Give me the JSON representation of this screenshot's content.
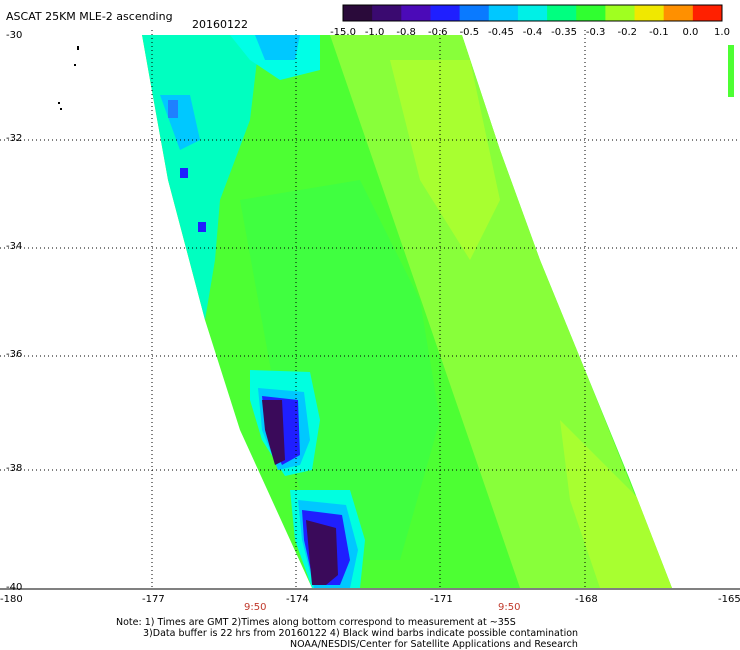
{
  "header": {
    "title": "ASCAT 25KM MLE-2 ascending",
    "date": "20160122"
  },
  "colorbar": {
    "labels": [
      "-15.0",
      "-1.0",
      "-0.8",
      "-0.6",
      "-0.5",
      "-0.45",
      "-0.4",
      "-0.35",
      "-0.3",
      "-0.2",
      "-0.1",
      "0.0",
      "1.0"
    ],
    "colors": [
      "#2a0a3a",
      "#3a0a70",
      "#4b0ab8",
      "#1f1fff",
      "#0a7aff",
      "#00c8ff",
      "#00f0e6",
      "#00ff80",
      "#30ff30",
      "#a0ff20",
      "#f0e800",
      "#ff9000",
      "#ff2000"
    ]
  },
  "map": {
    "lat_labels": [
      "-30",
      "-32",
      "-34",
      "-36",
      "-38",
      "-40"
    ],
    "lon_labels": [
      "-180",
      "-177",
      "-174",
      "-171",
      "-168",
      "-165"
    ],
    "time_labels": [
      "9:50",
      "9:50"
    ],
    "lat_range": [
      -40,
      -30
    ],
    "lon_range": [
      -180,
      -165
    ],
    "colors": {
      "green": "#33ff33",
      "yellow_green": "#99ff33",
      "cyan": "#00ffcc",
      "light_blue": "#00c8ff",
      "blue": "#1f1fff",
      "deep_purple": "#3a0a5a"
    }
  },
  "notes": {
    "line1": "Note: 1) Times are GMT 2)Times along bottom correspond to measurement at ~35S",
    "line2": "3)Data buffer is 22 hrs from 20160122 4) Black wind barbs indicate possible contamination",
    "line3": "NOAA/NESDIS/Center for Satellite Applications and Research"
  }
}
